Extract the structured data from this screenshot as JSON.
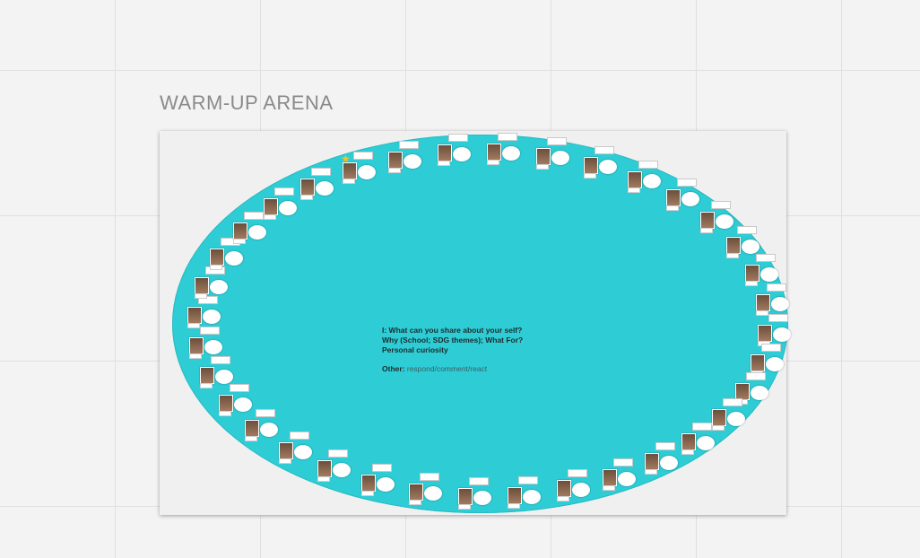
{
  "board": {
    "frame_title": "WARM-UP ARENA",
    "prompt": {
      "line1": "I: What can you share about your self?",
      "line2": "Why (School; SDG themes); What For?",
      "line3": "Personal curiosity",
      "other_label": "Other:",
      "other_value": "respond/comment/react"
    }
  },
  "icons": {
    "star": "star-icon"
  },
  "colors": {
    "arena_fill": "#2ecdd6",
    "canvas_bg": "#f3f3f3",
    "frame_bg": "#f0f0f0",
    "title_text": "#8a8a8a",
    "star": "#f3c323"
  }
}
